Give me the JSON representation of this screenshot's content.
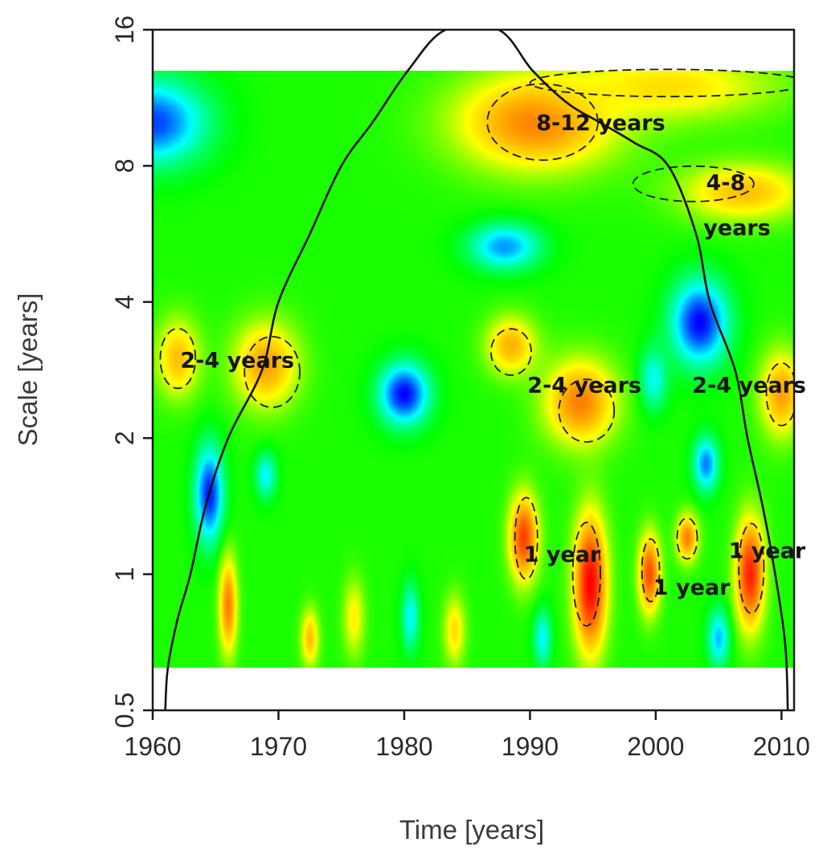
{
  "chart_data": {
    "type": "heatmap",
    "title": "",
    "xlabel": "Time [years]",
    "ylabel": "Scale [years]",
    "xlim": [
      1960,
      2011
    ],
    "ylim": [
      0.5,
      16
    ],
    "y_scale": "log2",
    "x_ticks": [
      1960,
      1970,
      1980,
      1990,
      2000,
      2010
    ],
    "x_tick_labels": [
      "1960",
      "1970",
      "1980",
      "1990",
      "2000",
      "2010"
    ],
    "y_ticks": [
      0.5,
      1,
      2,
      4,
      8,
      16
    ],
    "y_tick_labels": [
      "0.5",
      "1",
      "2",
      "4",
      "8",
      "16"
    ],
    "data_extent": {
      "x": [
        1960,
        2011
      ],
      "y": [
        0.62,
        13
      ]
    },
    "colormap": [
      "#0000ff",
      "#00ffff",
      "#00ff00",
      "#ffff00",
      "#ff8000",
      "#ff0000"
    ],
    "background_level": 0.42,
    "power_features": [
      {
        "x": 1960.0,
        "y": 10.0,
        "level": 0.05,
        "sx": 3.0,
        "sy": 0.22
      },
      {
        "x": 1990.5,
        "y": 10.0,
        "level": 0.8,
        "sx": 4.5,
        "sy": 0.25
      },
      {
        "x": 2001.0,
        "y": 12.0,
        "level": 0.65,
        "sx": 6.0,
        "sy": 0.18
      },
      {
        "x": 2007.0,
        "y": 7.0,
        "level": 0.7,
        "sx": 3.5,
        "sy": 0.15
      },
      {
        "x": 1988.0,
        "y": 5.3,
        "level": 0.12,
        "sx": 2.0,
        "sy": 0.12
      },
      {
        "x": 2003.5,
        "y": 3.6,
        "level": 0.0,
        "sx": 1.6,
        "sy": 0.22
      },
      {
        "x": 1980.0,
        "y": 2.5,
        "level": 0.0,
        "sx": 1.4,
        "sy": 0.16
      },
      {
        "x": 1964.5,
        "y": 1.5,
        "level": 0.02,
        "sx": 0.8,
        "sy": 0.25
      },
      {
        "x": 1969.0,
        "y": 1.65,
        "level": 0.2,
        "sx": 0.6,
        "sy": 0.12
      },
      {
        "x": 1999.8,
        "y": 2.7,
        "level": 0.2,
        "sx": 0.8,
        "sy": 0.16
      },
      {
        "x": 2004.0,
        "y": 1.75,
        "level": 0.1,
        "sx": 0.7,
        "sy": 0.14
      },
      {
        "x": 1962.0,
        "y": 3.0,
        "level": 0.7,
        "sx": 1.2,
        "sy": 0.2
      },
      {
        "x": 1969.0,
        "y": 2.9,
        "level": 0.75,
        "sx": 1.8,
        "sy": 0.22
      },
      {
        "x": 1988.5,
        "y": 3.2,
        "level": 0.72,
        "sx": 1.4,
        "sy": 0.15
      },
      {
        "x": 1994.0,
        "y": 2.4,
        "level": 0.8,
        "sx": 2.0,
        "sy": 0.22
      },
      {
        "x": 2010.0,
        "y": 2.5,
        "level": 0.75,
        "sx": 1.2,
        "sy": 0.22
      },
      {
        "x": 1989.5,
        "y": 1.2,
        "level": 0.9,
        "sx": 0.8,
        "sy": 0.22
      },
      {
        "x": 1994.8,
        "y": 0.95,
        "level": 1.0,
        "sx": 0.9,
        "sy": 0.35
      },
      {
        "x": 1999.5,
        "y": 1.0,
        "level": 0.88,
        "sx": 0.6,
        "sy": 0.2
      },
      {
        "x": 2002.5,
        "y": 1.2,
        "level": 0.8,
        "sx": 0.6,
        "sy": 0.12
      },
      {
        "x": 2007.5,
        "y": 1.0,
        "level": 0.95,
        "sx": 0.8,
        "sy": 0.28
      },
      {
        "x": 1966.0,
        "y": 0.85,
        "level": 0.8,
        "sx": 0.5,
        "sy": 0.25
      },
      {
        "x": 1972.5,
        "y": 0.72,
        "level": 0.7,
        "sx": 0.5,
        "sy": 0.15
      },
      {
        "x": 1976.0,
        "y": 0.8,
        "level": 0.62,
        "sx": 0.6,
        "sy": 0.2
      },
      {
        "x": 1984.0,
        "y": 0.75,
        "level": 0.65,
        "sx": 0.6,
        "sy": 0.18
      },
      {
        "x": 1980.5,
        "y": 0.8,
        "level": 0.2,
        "sx": 0.5,
        "sy": 0.18
      },
      {
        "x": 1991.0,
        "y": 0.72,
        "level": 0.2,
        "sx": 0.5,
        "sy": 0.15
      },
      {
        "x": 2005.0,
        "y": 0.72,
        "level": 0.15,
        "sx": 0.6,
        "sy": 0.15
      }
    ],
    "cone_of_influence": [
      {
        "x": 1961.0,
        "y": 0.5
      },
      {
        "x": 1961.2,
        "y": 0.62
      },
      {
        "x": 1962.0,
        "y": 0.8
      },
      {
        "x": 1963.0,
        "y": 1.0
      },
      {
        "x": 1964.2,
        "y": 1.414
      },
      {
        "x": 1966.0,
        "y": 2.0
      },
      {
        "x": 1968.7,
        "y": 2.83
      },
      {
        "x": 1970.0,
        "y": 4.0
      },
      {
        "x": 1972.5,
        "y": 5.66
      },
      {
        "x": 1975.0,
        "y": 8.0
      },
      {
        "x": 1977.5,
        "y": 10.0
      },
      {
        "x": 1980.3,
        "y": 13.0
      },
      {
        "x": 1983.3,
        "y": 16.0
      },
      {
        "x": 1987.5,
        "y": 16.0
      },
      {
        "x": 1990.2,
        "y": 13.0
      },
      {
        "x": 1993.0,
        "y": 11.0
      },
      {
        "x": 1995.5,
        "y": 10.0
      },
      {
        "x": 1998.3,
        "y": 9.0
      },
      {
        "x": 2001.0,
        "y": 8.0
      },
      {
        "x": 2003.2,
        "y": 5.66
      },
      {
        "x": 2004.3,
        "y": 4.0
      },
      {
        "x": 2006.3,
        "y": 2.83
      },
      {
        "x": 2007.3,
        "y": 2.0
      },
      {
        "x": 2008.5,
        "y": 1.414
      },
      {
        "x": 2009.5,
        "y": 1.0
      },
      {
        "x": 2010.3,
        "y": 0.7
      },
      {
        "x": 2010.5,
        "y": 0.5
      }
    ],
    "significance_regions": [
      {
        "cx": 1962.0,
        "cy": 3.0,
        "rx": 1.4,
        "ry": 0.22
      },
      {
        "cx": 1969.5,
        "cy": 2.8,
        "rx": 2.2,
        "ry": 0.26
      },
      {
        "cx": 1988.5,
        "cy": 3.1,
        "rx": 1.6,
        "ry": 0.17
      },
      {
        "cx": 1994.5,
        "cy": 2.3,
        "rx": 2.2,
        "ry": 0.23
      },
      {
        "cx": 2010.0,
        "cy": 2.5,
        "rx": 1.2,
        "ry": 0.23
      },
      {
        "cx": 1989.7,
        "cy": 1.2,
        "rx": 0.9,
        "ry": 0.3
      },
      {
        "cx": 1994.5,
        "cy": 1.0,
        "rx": 1.1,
        "ry": 0.38
      },
      {
        "cx": 1999.6,
        "cy": 1.02,
        "rx": 0.7,
        "ry": 0.23
      },
      {
        "cx": 2002.5,
        "cy": 1.2,
        "rx": 0.8,
        "ry": 0.15
      },
      {
        "cx": 2007.6,
        "cy": 1.03,
        "rx": 1.0,
        "ry": 0.33
      },
      {
        "cx": 1991.0,
        "cy": 10.0,
        "rx": 4.4,
        "ry": 0.28
      },
      {
        "cx": 2003.0,
        "cy": 7.3,
        "rx": 4.8,
        "ry": 0.13
      },
      {
        "cx": 2001.0,
        "cy": 12.2,
        "rx": 11.0,
        "ry": 0.1
      }
    ],
    "annotations": [
      {
        "text": "8-12 years",
        "x": 1990.5,
        "y": 9.9
      },
      {
        "text": "4-8",
        "x": 2004.0,
        "y": 7.3
      },
      {
        "text": "years",
        "x": 2003.8,
        "y": 5.8
      },
      {
        "text": "2-4 years",
        "x": 1962.2,
        "y": 2.95
      },
      {
        "text": "2-4 years",
        "x": 1989.8,
        "y": 2.6
      },
      {
        "text": "2-4 years",
        "x": 2002.9,
        "y": 2.6
      },
      {
        "text": "1 year",
        "x": 1989.5,
        "y": 1.1
      },
      {
        "text": "1 year",
        "x": 1999.8,
        "y": 0.93
      },
      {
        "text": "1 year",
        "x": 2005.8,
        "y": 1.12
      }
    ]
  }
}
